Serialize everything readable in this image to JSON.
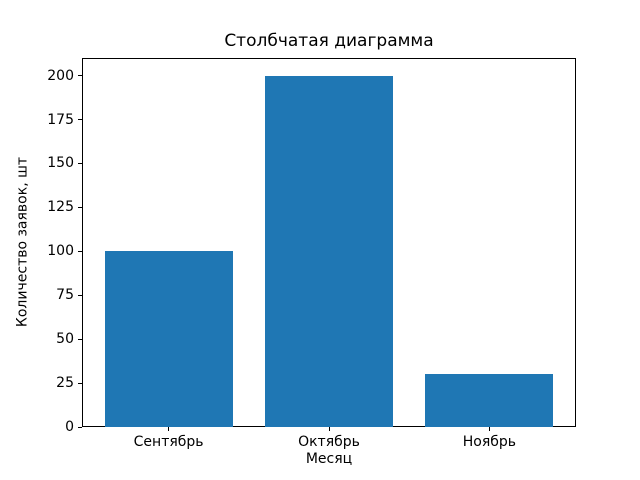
{
  "chart_data": {
    "type": "bar",
    "title": "Столбчатая диаграмма",
    "xlabel": "Месяц",
    "ylabel": "Количество заявок, шт",
    "categories": [
      "Сентябрь",
      "Октябрь",
      "Ноябрь"
    ],
    "values": [
      100,
      200,
      30
    ],
    "yticks": [
      0,
      25,
      50,
      75,
      100,
      125,
      150,
      175,
      200
    ],
    "ylim": [
      0,
      210
    ],
    "bar_color": "#1f77b4",
    "grid": false,
    "legend_position": "none",
    "background_color": "#ffffff",
    "frame_color": "#000000"
  }
}
